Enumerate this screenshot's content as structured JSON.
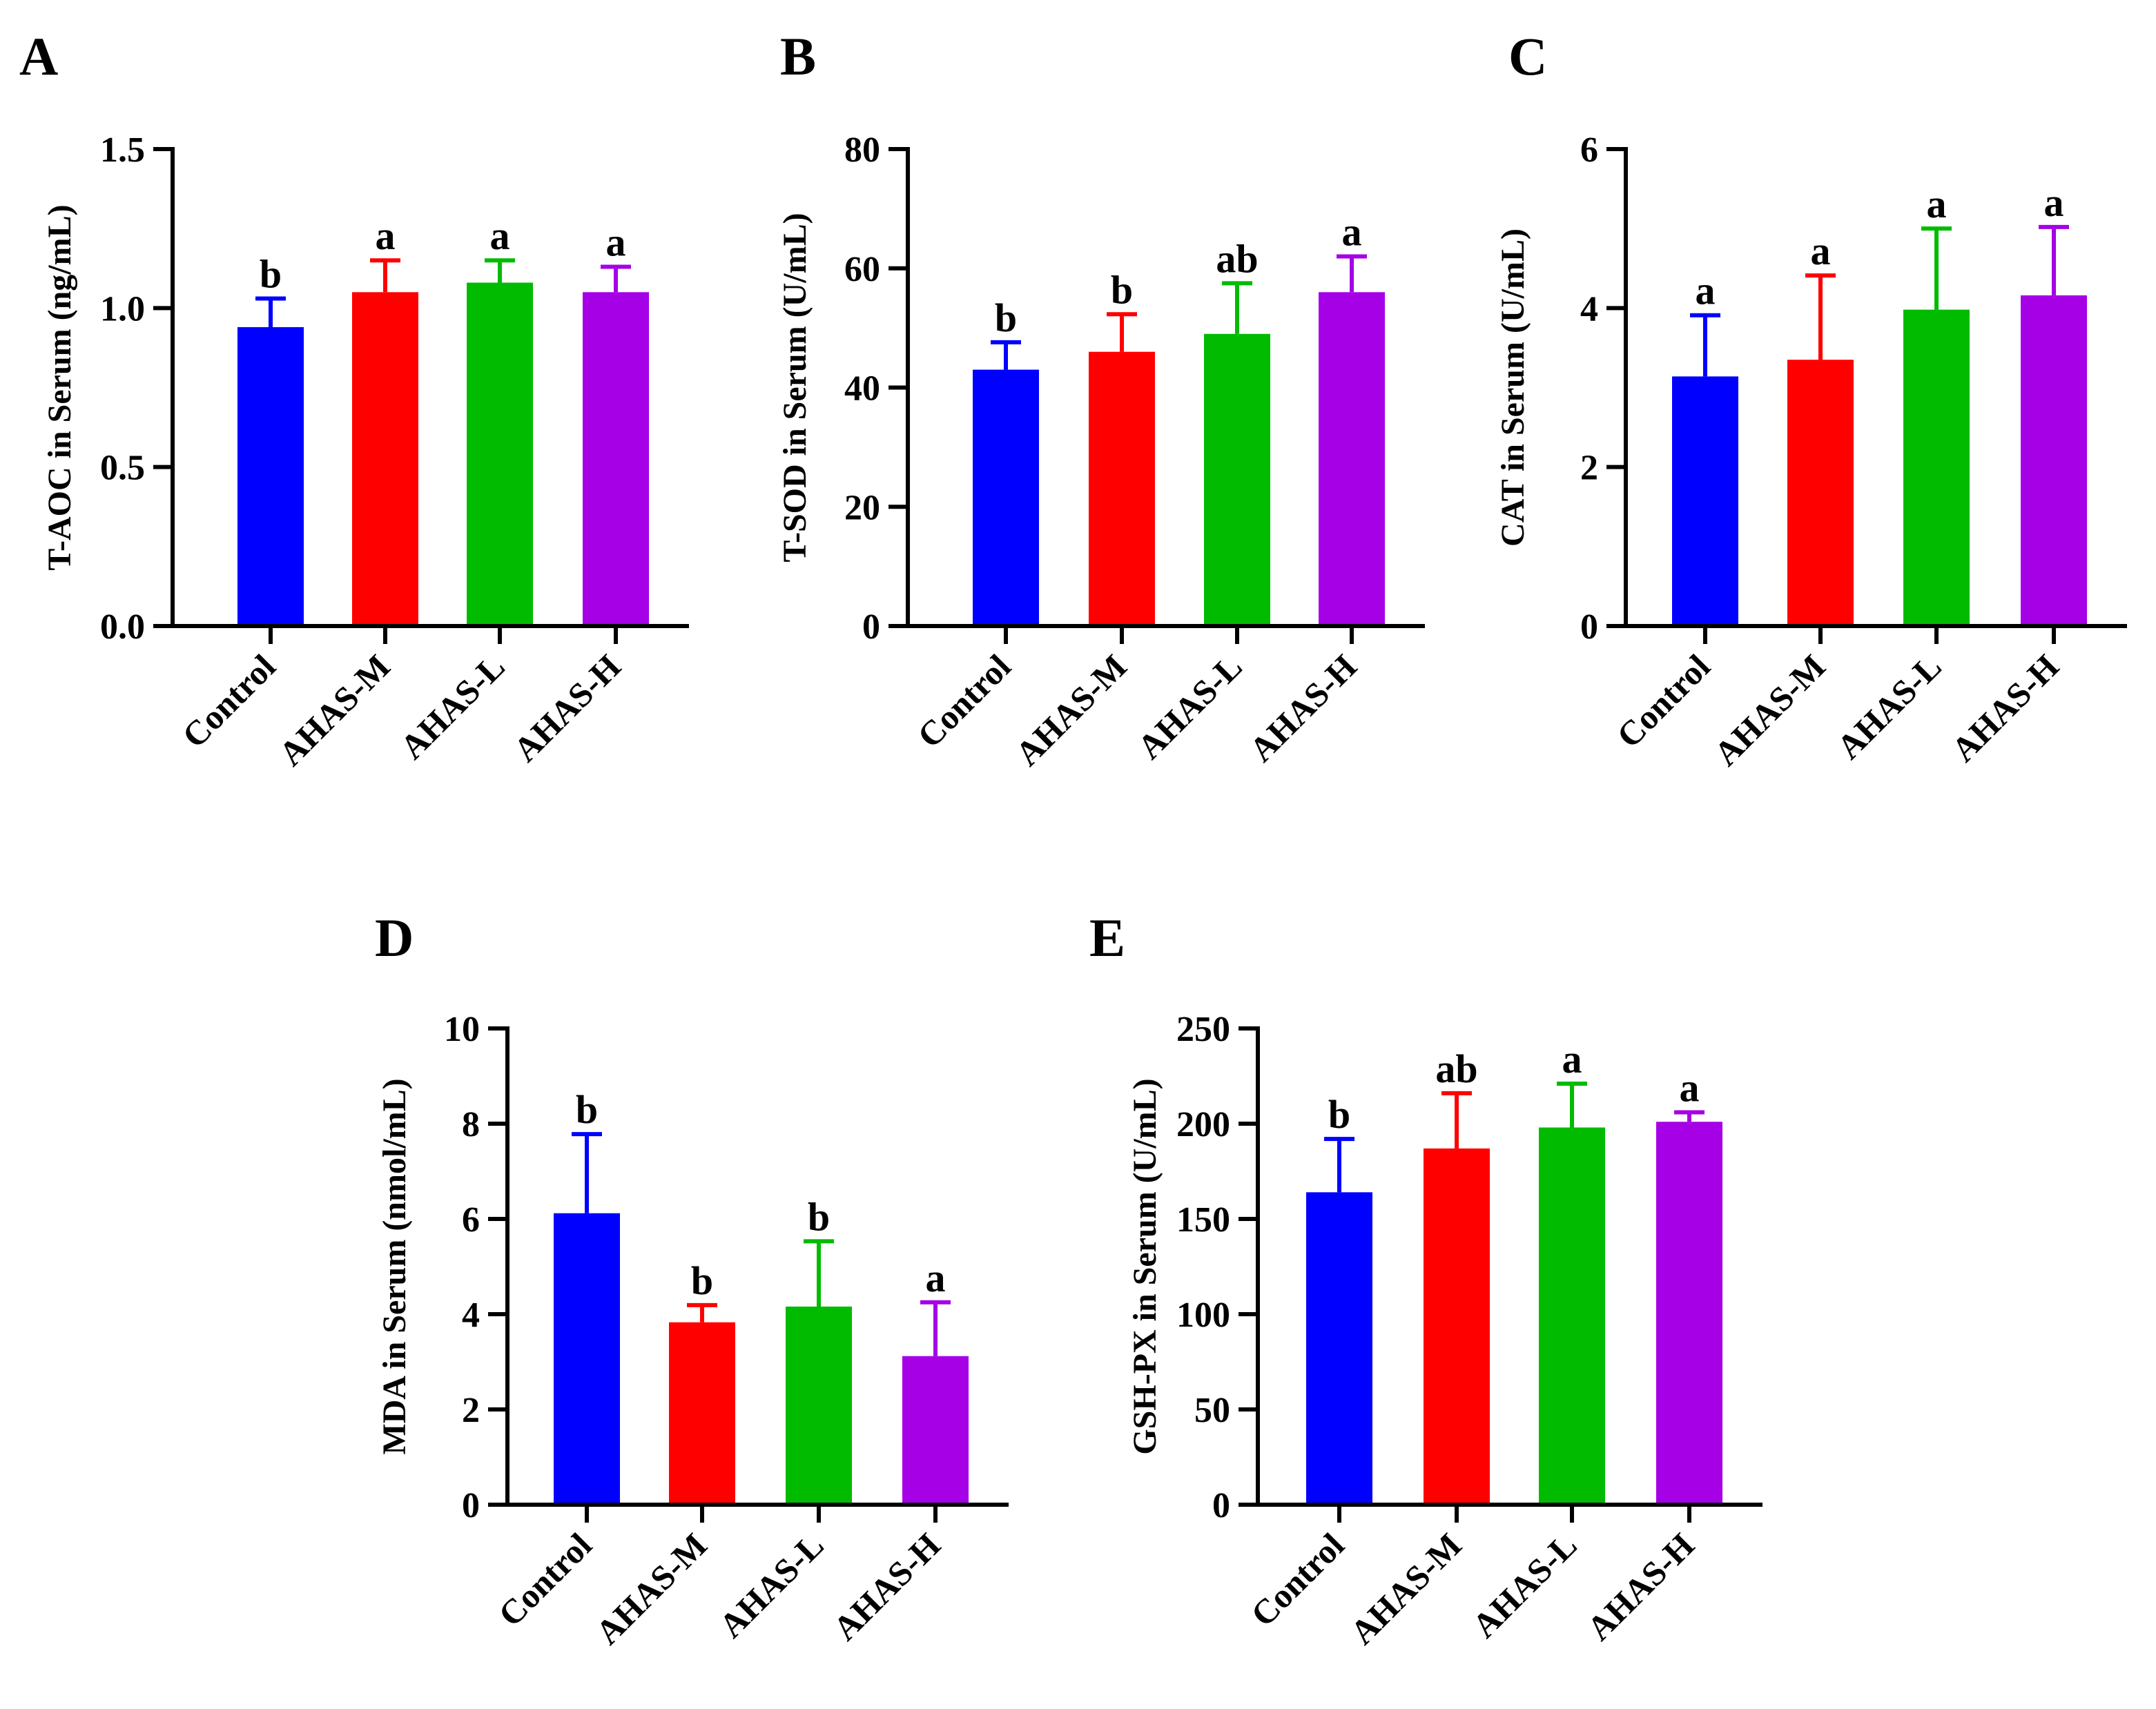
{
  "figure": {
    "colors": {
      "Control": "#0000ff",
      "AHAS-M": "#ff0000",
      "AHAS-L": "#00bb00",
      "AHAS-H": "#a500e6"
    }
  },
  "chart_data": [
    {
      "panel": "A",
      "type": "bar",
      "title": "",
      "xlabel": "",
      "ylabel": "T-AOC in Serum (ng/mL)",
      "categories": [
        "Control",
        "AHAS-M",
        "AHAS-L",
        "AHAS-H"
      ],
      "values": [
        0.94,
        1.05,
        1.08,
        1.05
      ],
      "errors": [
        0.09,
        0.1,
        0.07,
        0.08
      ],
      "significance": [
        "b",
        "a",
        "a",
        "a"
      ],
      "ylim": [
        0,
        1.5
      ],
      "yticks": [
        0.0,
        0.5,
        1.0,
        1.5
      ],
      "yticklabels": [
        "0.0",
        "0.5",
        "1.0",
        "1.5"
      ],
      "grid": false,
      "legend": "none"
    },
    {
      "panel": "B",
      "type": "bar",
      "title": "",
      "xlabel": "",
      "ylabel": "T-SOD in Serum (U/mL)",
      "categories": [
        "Control",
        "AHAS-M",
        "AHAS-L",
        "AHAS-H"
      ],
      "values": [
        43,
        46,
        49,
        56
      ],
      "errors": [
        4.6,
        6.3,
        8.5,
        6.0
      ],
      "significance": [
        "b",
        "b",
        "ab",
        "a"
      ],
      "ylim": [
        0,
        80
      ],
      "yticks": [
        0,
        20,
        40,
        60,
        80
      ],
      "yticklabels": [
        "0",
        "20",
        "40",
        "60",
        "80"
      ],
      "grid": false,
      "legend": "none"
    },
    {
      "panel": "C",
      "type": "bar",
      "title": "",
      "xlabel": "",
      "ylabel": "CAT in Serum (U/mL)",
      "categories": [
        "Control",
        "AHAS-M",
        "AHAS-L",
        "AHAS-H"
      ],
      "values": [
        3.14,
        3.35,
        3.98,
        4.16
      ],
      "errors": [
        0.77,
        1.06,
        1.02,
        0.86
      ],
      "significance": [
        "a",
        "a",
        "a",
        "a"
      ],
      "ylim": [
        0,
        6
      ],
      "yticks": [
        0,
        2,
        4,
        6
      ],
      "yticklabels": [
        "0",
        "2",
        "4",
        "6"
      ],
      "grid": false,
      "legend": "none"
    },
    {
      "panel": "D",
      "type": "bar",
      "title": "",
      "xlabel": "",
      "ylabel": "MDA in Serum (nmol/mL)",
      "categories": [
        "Control",
        "AHAS-M",
        "AHAS-L",
        "AHAS-H"
      ],
      "values": [
        6.12,
        3.83,
        4.16,
        3.12
      ],
      "errors": [
        1.66,
        0.36,
        1.37,
        1.13
      ],
      "significance": [
        "b",
        "b",
        "b",
        "a"
      ],
      "ylim": [
        0,
        10
      ],
      "yticks": [
        0,
        2,
        4,
        6,
        8,
        10
      ],
      "yticklabels": [
        "0",
        "2",
        "4",
        "6",
        "8",
        "10"
      ],
      "grid": false,
      "legend": "none"
    },
    {
      "panel": "E",
      "type": "bar",
      "title": "",
      "xlabel": "",
      "ylabel": "GSH-PX in Serum (U/mL)",
      "categories": [
        "Control",
        "AHAS-M",
        "AHAS-L",
        "AHAS-H"
      ],
      "values": [
        164,
        187,
        198,
        201
      ],
      "errors": [
        28,
        29,
        23,
        5
      ],
      "significance": [
        "b",
        "ab",
        "a",
        "a"
      ],
      "ylim": [
        0,
        250
      ],
      "yticks": [
        0,
        50,
        100,
        150,
        200,
        250
      ],
      "yticklabels": [
        "0",
        "50",
        "100",
        "150",
        "200",
        "250"
      ],
      "grid": false,
      "legend": "none"
    }
  ]
}
